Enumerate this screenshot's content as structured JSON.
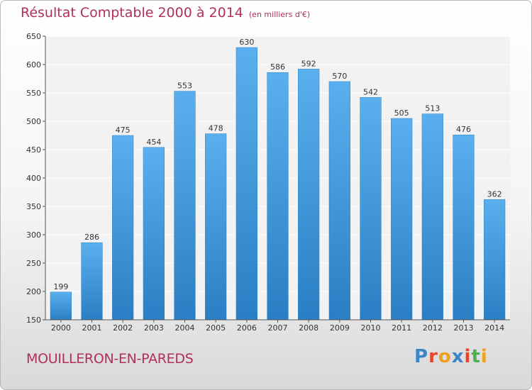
{
  "title": "Résultat Comptable 2000 à 2014",
  "unit": "(en milliers d'€)",
  "place": "MOUILLERON-EN-PAREDS",
  "logo": {
    "letters": [
      "P",
      "r",
      "o",
      "x",
      "i",
      "t",
      "i"
    ],
    "colors": [
      "#3a86c8",
      "#e8442e",
      "#f0a020",
      "#3a86c8",
      "#e8442e",
      "#4caf50",
      "#f0a020"
    ]
  },
  "chart_data": {
    "type": "bar",
    "categories": [
      "2000",
      "2001",
      "2002",
      "2003",
      "2004",
      "2005",
      "2006",
      "2007",
      "2008",
      "2009",
      "2010",
      "2011",
      "2012",
      "2013",
      "2014"
    ],
    "values": [
      199,
      286,
      475,
      454,
      553,
      478,
      630,
      586,
      592,
      570,
      542,
      505,
      513,
      476,
      362
    ],
    "ylim": [
      150,
      650
    ],
    "yticks": [
      150,
      200,
      250,
      300,
      350,
      400,
      450,
      500,
      550,
      600,
      650
    ],
    "grid": true,
    "bar_color": "#3d9be3"
  }
}
